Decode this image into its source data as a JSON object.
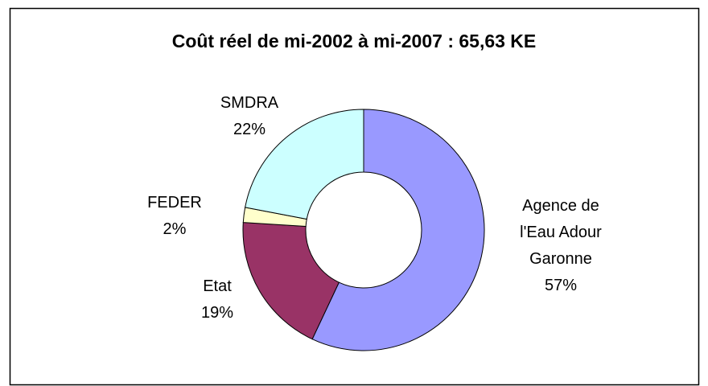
{
  "chart_data": {
    "type": "donut",
    "title": "Coût réel de mi-2002 à mi-2007 : 65,63 KE",
    "categories": [
      "Agence de l'Eau Adour Garonne",
      "Etat",
      "FEDER",
      "SMDRA"
    ],
    "values": [
      57,
      19,
      2,
      22
    ],
    "value_labels": [
      "57%",
      "19%",
      "2%",
      "22%"
    ],
    "colors": [
      "#9999ff",
      "#993366",
      "#ffffcc",
      "#ccffff"
    ]
  }
}
